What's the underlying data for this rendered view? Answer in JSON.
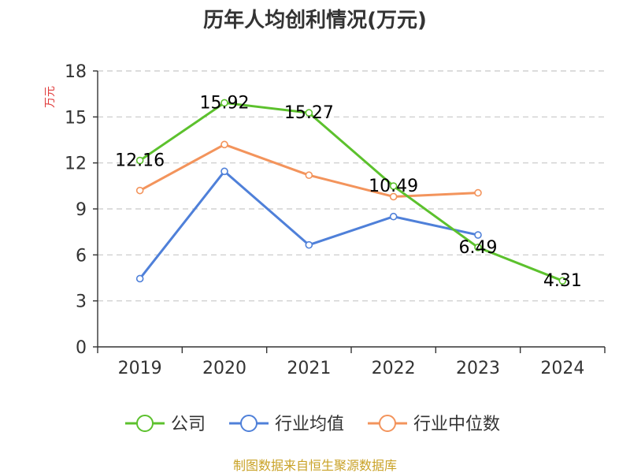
{
  "chart_data": {
    "type": "line",
    "title": "历年人均创利情况(万元)",
    "ylabel": "万元",
    "xlabel": "",
    "categories": [
      "2019",
      "2020",
      "2021",
      "2022",
      "2023",
      "2024"
    ],
    "ylim": [
      0,
      18
    ],
    "yticks": [
      0,
      3,
      6,
      9,
      12,
      15,
      18
    ],
    "grid": true,
    "legend_position": "bottom",
    "series": [
      {
        "name": "公司",
        "color": "#5cc12d",
        "values": [
          12.16,
          15.92,
          15.27,
          10.49,
          6.49,
          4.31
        ],
        "labels": [
          "12.16",
          "15.92",
          "15.27",
          "10.49",
          "6.49",
          "4.31"
        ]
      },
      {
        "name": "行业均值",
        "color": "#4f80d9",
        "values": [
          4.45,
          11.45,
          6.65,
          8.5,
          7.3,
          null
        ],
        "labels": []
      },
      {
        "name": "行业中位数",
        "color": "#f3945c",
        "values": [
          10.2,
          13.2,
          11.2,
          9.8,
          10.05,
          null
        ],
        "labels": []
      }
    ]
  },
  "footer": {
    "source": "制图数据来自恒生聚源数据库"
  }
}
